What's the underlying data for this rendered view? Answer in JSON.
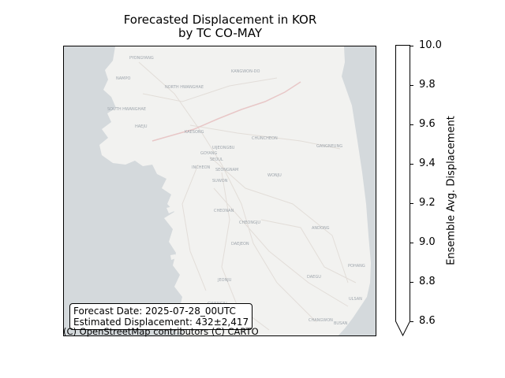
{
  "title_line1": "Forecasted Displacement in KOR",
  "title_line2": "by TC CO-MAY",
  "info": {
    "forecast_date": "Forecast Date: 2025-07-28_00UTC",
    "estimated": "Estimated Displacement: 432±2,417"
  },
  "attribution": "(C) OpenStreetMap contributors (C) CARTO",
  "colorbar": {
    "label": "Ensemble Avg. Displacement",
    "ticks": [
      "10.0",
      "9.8",
      "9.6",
      "9.4",
      "9.2",
      "9.0",
      "8.8",
      "8.6"
    ],
    "range": [
      8.6,
      10.0
    ],
    "extend": "min"
  },
  "map_labels": [
    "PYONGYANG",
    "NAMPO",
    "NORTH HWANGHAE",
    "SOUTH HWANGHAE",
    "HAEJU",
    "KANGWON-DO",
    "KAESONG",
    "GOYANG",
    "SEOUL",
    "UIJEONGBU",
    "INCHEON",
    "SEONGNAM",
    "SUWON",
    "GANGNEUNG",
    "CHUNCHEON",
    "WONJU",
    "CHEONAN",
    "CHEONGJU",
    "DAEJEON",
    "JEONJU",
    "ANDONG",
    "DAEGU",
    "POHANG",
    "GWANGJU",
    "ULSAN",
    "BUSAN",
    "CHANGWON"
  ],
  "colors": {
    "sea": "#d4d9dc",
    "land": "#f2f2f0",
    "road": "#e4e0dc",
    "border": "#e8c7c7",
    "label": "#9fa6ad"
  }
}
